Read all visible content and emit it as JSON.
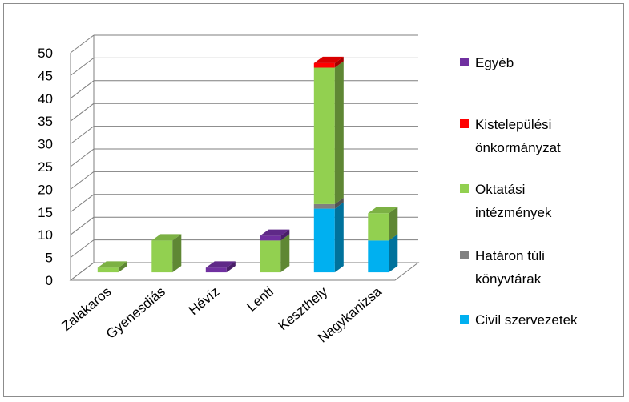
{
  "chart_data": {
    "type": "bar",
    "stacked": true,
    "three_d": true,
    "categories": [
      "Zalakaros",
      "Gyenesdiás",
      "Hévíz",
      "Lenti",
      "Keszthely",
      "Nagykanizsa"
    ],
    "series": [
      {
        "name": "Civil szervezetek",
        "color": "#00b0f0",
        "values": [
          0,
          0,
          0,
          0,
          14,
          7
        ]
      },
      {
        "name": "Határon túli könyvtárak",
        "color": "#808080",
        "values": [
          0,
          0,
          0,
          0,
          1,
          0
        ]
      },
      {
        "name": "Oktatási intézmények",
        "color": "#92d050",
        "values": [
          1,
          7,
          0,
          7,
          30,
          6
        ]
      },
      {
        "name": "Kistelepülési önkormányzat",
        "color": "#ff0000",
        "values": [
          0,
          0,
          0,
          0,
          1,
          0
        ]
      },
      {
        "name": "Egyéb",
        "color": "#7030a0",
        "values": [
          0,
          0,
          1,
          1,
          0,
          0
        ]
      }
    ],
    "ylim": [
      0,
      50
    ],
    "yticks": [
      "0",
      "5",
      "10",
      "15",
      "20",
      "25",
      "30",
      "35",
      "40",
      "45",
      "50"
    ],
    "grid": true,
    "legend_placement": "right",
    "legend": [
      {
        "lines": [
          "Egyéb"
        ],
        "color": "#7030a0"
      },
      {
        "lines": [
          "Kistelepülési",
          "önkormányzat"
        ],
        "color": "#ff0000"
      },
      {
        "lines": [
          "Oktatási",
          "intézmények"
        ],
        "color": "#92d050"
      },
      {
        "lines": [
          "Határon túli",
          "könyvtárak"
        ],
        "color": "#808080"
      },
      {
        "lines": [
          "Civil szervezetek"
        ],
        "color": "#00b0f0"
      }
    ]
  }
}
